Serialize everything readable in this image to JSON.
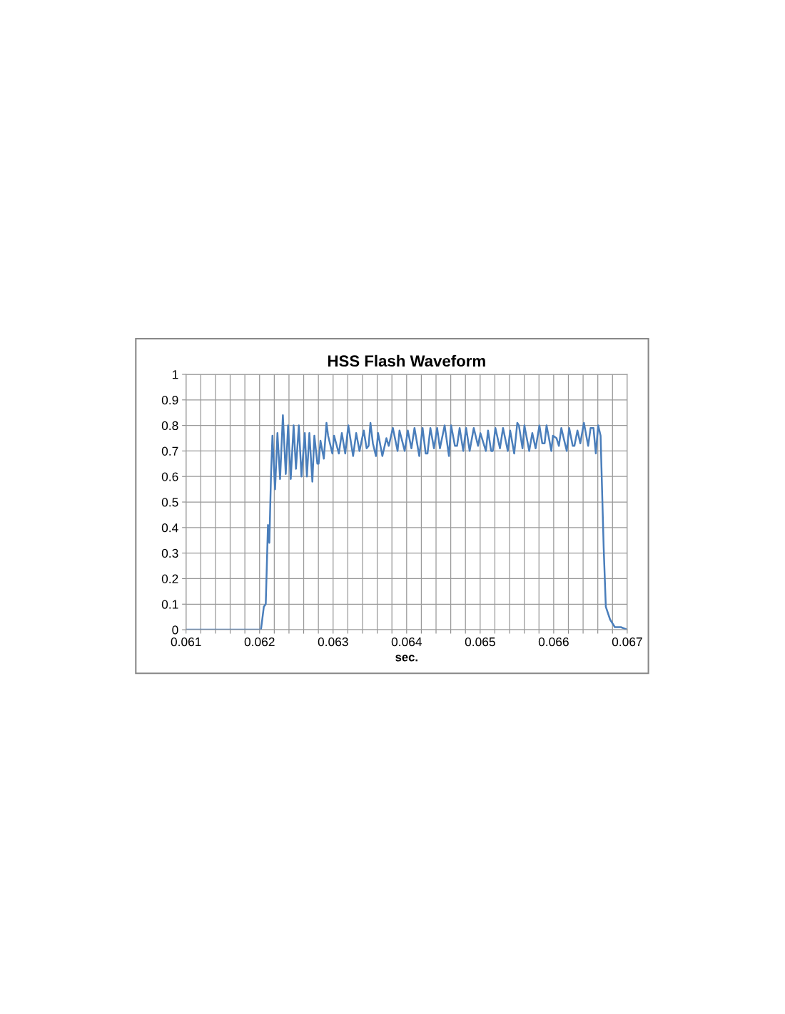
{
  "chart_data": {
    "type": "line",
    "title": "HSS Flash Waveform",
    "xlabel": "sec.",
    "xlim": [
      0.061,
      0.067
    ],
    "ylim": [
      0,
      1
    ],
    "xticks": [
      0.061,
      {
        "value": 0.0612,
        "label": null
      },
      {
        "value": 0.0614,
        "label": null
      },
      {
        "value": 0.0616,
        "label": null
      },
      {
        "value": 0.0618,
        "label": null
      },
      0.062,
      {
        "value": 0.0622,
        "label": null
      },
      {
        "value": 0.0624,
        "label": null
      },
      {
        "value": 0.0626,
        "label": null
      },
      {
        "value": 0.0628,
        "label": null
      },
      0.063,
      {
        "value": 0.0632,
        "label": null
      },
      {
        "value": 0.0634,
        "label": null
      },
      {
        "value": 0.0636,
        "label": null
      },
      {
        "value": 0.0638,
        "label": null
      },
      0.064,
      {
        "value": 0.0642,
        "label": null
      },
      {
        "value": 0.0644,
        "label": null
      },
      {
        "value": 0.0646,
        "label": null
      },
      {
        "value": 0.0648,
        "label": null
      },
      0.065,
      {
        "value": 0.0652,
        "label": null
      },
      {
        "value": 0.0654,
        "label": null
      },
      {
        "value": 0.0656,
        "label": null
      },
      {
        "value": 0.0658,
        "label": null
      },
      0.066,
      {
        "value": 0.0662,
        "label": null
      },
      {
        "value": 0.0664,
        "label": null
      },
      {
        "value": 0.0666,
        "label": null
      },
      {
        "value": 0.0668,
        "label": null
      },
      0.067
    ],
    "yticks": [
      0,
      0.1,
      0.2,
      0.3,
      0.4,
      0.5,
      0.6,
      0.7,
      0.8,
      0.9,
      1
    ],
    "grid": true,
    "legend": false,
    "marker": "none",
    "line_style": "solid",
    "series": [
      {
        "color": "#4a7ebb",
        "x": [
          0.061,
          0.062019,
          0.062058,
          0.062084,
          0.062114,
          0.062133,
          0.062155,
          0.062175,
          0.062211,
          0.062243,
          0.062279,
          0.062317,
          0.062356,
          0.062388,
          0.062424,
          0.062463,
          0.062495,
          0.062534,
          0.06257,
          0.062615,
          0.062644,
          0.062677,
          0.062718,
          0.062745,
          0.062786,
          0.062803,
          0.062828,
          0.062874,
          0.06291,
          0.062932,
          0.06299,
          0.063013,
          0.063078,
          0.063119,
          0.063165,
          0.063207,
          0.063272,
          0.063314,
          0.063359,
          0.063417,
          0.063456,
          0.063483,
          0.063508,
          0.063541,
          0.063583,
          0.063612,
          0.06367,
          0.063725,
          0.063757,
          0.063813,
          0.063877,
          0.063903,
          0.063974,
          0.064016,
          0.064065,
          0.064107,
          0.064172,
          0.064217,
          0.064259,
          0.064284,
          0.064323,
          0.064372,
          0.064415,
          0.064453,
          0.064517,
          0.064576,
          0.064605,
          0.064657,
          0.064686,
          0.064721,
          0.06477,
          0.064809,
          0.064857,
          0.064913,
          0.064971,
          0.065003,
          0.065078,
          0.065107,
          0.065149,
          0.065172,
          0.065207,
          0.065269,
          0.065311,
          0.065376,
          0.065408,
          0.065463,
          0.065505,
          0.065527,
          0.065576,
          0.065602,
          0.065667,
          0.065709,
          0.065754,
          0.065806,
          0.065845,
          0.065877,
          0.065903,
          0.065942,
          0.065968,
          0.06599,
          0.066039,
          0.066071,
          0.066104,
          0.066136,
          0.066178,
          0.066211,
          0.066259,
          0.066282,
          0.066323,
          0.066362,
          0.066411,
          0.066469,
          0.066502,
          0.066541,
          0.066573,
          0.066605,
          0.066638,
          0.066653,
          0.06668,
          0.066709,
          0.066767,
          0.066832,
          0.066913,
          0.067
        ],
        "values": [
          0,
          0,
          0.09,
          0.1,
          0.41,
          0.34,
          0.6,
          0.76,
          0.55,
          0.77,
          0.59,
          0.84,
          0.61,
          0.8,
          0.59,
          0.8,
          0.63,
          0.8,
          0.6,
          0.77,
          0.6,
          0.77,
          0.58,
          0.76,
          0.65,
          0.65,
          0.74,
          0.67,
          0.81,
          0.76,
          0.69,
          0.76,
          0.69,
          0.77,
          0.69,
          0.8,
          0.68,
          0.77,
          0.7,
          0.78,
          0.71,
          0.72,
          0.81,
          0.73,
          0.68,
          0.77,
          0.68,
          0.75,
          0.72,
          0.79,
          0.7,
          0.78,
          0.7,
          0.78,
          0.71,
          0.79,
          0.68,
          0.79,
          0.69,
          0.69,
          0.79,
          0.71,
          0.79,
          0.71,
          0.8,
          0.68,
          0.8,
          0.72,
          0.72,
          0.79,
          0.7,
          0.79,
          0.7,
          0.79,
          0.72,
          0.77,
          0.7,
          0.78,
          0.7,
          0.7,
          0.79,
          0.71,
          0.79,
          0.7,
          0.78,
          0.69,
          0.81,
          0.8,
          0.71,
          0.8,
          0.7,
          0.77,
          0.71,
          0.8,
          0.73,
          0.73,
          0.8,
          0.74,
          0.7,
          0.76,
          0.75,
          0.72,
          0.79,
          0.75,
          0.7,
          0.79,
          0.72,
          0.72,
          0.78,
          0.73,
          0.81,
          0.72,
          0.79,
          0.79,
          0.69,
          0.8,
          0.76,
          0.6,
          0.32,
          0.09,
          0.04,
          0.01,
          0.01,
          0
        ]
      }
    ]
  }
}
